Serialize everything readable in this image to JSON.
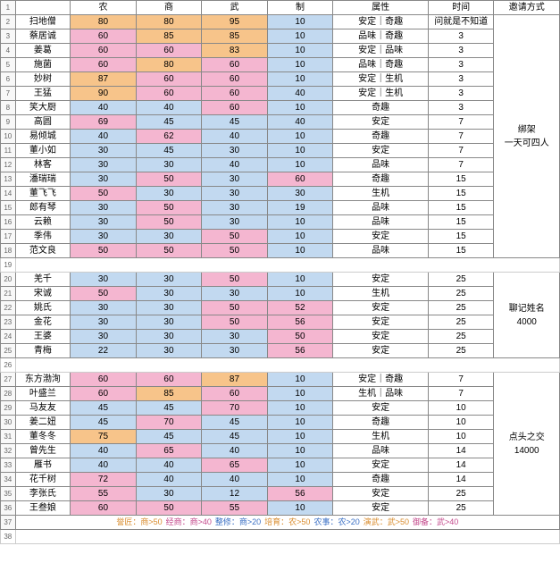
{
  "colors": {
    "orange": "#f7c48a",
    "pink": "#f4b6d0",
    "blue": "#c2d9f0",
    "header": "#ffffff"
  },
  "thresholds": {
    "orange_min": 75,
    "pink_min": 50
  },
  "columns": [
    "农",
    "商",
    "武",
    "制",
    "属性",
    "时间",
    "邀请方式"
  ],
  "sections": [
    {
      "merged_label": "绑架\n一天可四人",
      "rows_start": 2,
      "rows": [
        {
          "name": "扫地僧",
          "stats": [
            80,
            80,
            95,
            10
          ],
          "attr": "安定｜奇趣",
          "time": "问就是不知道"
        },
        {
          "name": "蔡居诚",
          "stats": [
            60,
            85,
            85,
            10
          ],
          "attr": "品味｜奇趣",
          "time": "3"
        },
        {
          "name": "姜葛",
          "stats": [
            60,
            60,
            83,
            10
          ],
          "attr": "安定｜品味",
          "time": "3"
        },
        {
          "name": "施菌",
          "stats": [
            60,
            80,
            60,
            10
          ],
          "attr": "品味｜奇趣",
          "time": "3"
        },
        {
          "name": "妙树",
          "stats": [
            87,
            60,
            60,
            10
          ],
          "attr": "安定｜生机",
          "time": "3"
        },
        {
          "name": "王猛",
          "stats": [
            90,
            60,
            60,
            40
          ],
          "attr": "安定｜生机",
          "time": "3"
        },
        {
          "name": "笑大厨",
          "stats": [
            40,
            40,
            60,
            10
          ],
          "attr": "奇趣",
          "time": "3"
        },
        {
          "name": "高圆",
          "stats": [
            69,
            45,
            45,
            40
          ],
          "attr": "安定",
          "time": "7"
        },
        {
          "name": "易倾城",
          "stats": [
            40,
            62,
            40,
            10
          ],
          "attr": "奇趣",
          "time": "7"
        },
        {
          "name": "董小如",
          "stats": [
            30,
            45,
            30,
            10
          ],
          "attr": "安定",
          "time": "7"
        },
        {
          "name": "林客",
          "stats": [
            30,
            30,
            40,
            10
          ],
          "attr": "品味",
          "time": "7"
        },
        {
          "name": "潘瑞瑞",
          "stats": [
            30,
            50,
            30,
            60
          ],
          "attr": "奇趣",
          "time": "15"
        },
        {
          "name": "董飞飞",
          "stats": [
            50,
            30,
            30,
            30
          ],
          "attr": "生机",
          "time": "15"
        },
        {
          "name": "郎有琴",
          "stats": [
            30,
            50,
            30,
            19
          ],
          "attr": "品味",
          "time": "15"
        },
        {
          "name": "云赖",
          "stats": [
            30,
            50,
            30,
            10
          ],
          "attr": "品味",
          "time": "15"
        },
        {
          "name": "季伟",
          "stats": [
            30,
            30,
            50,
            10
          ],
          "attr": "安定",
          "time": "15"
        },
        {
          "name": "范文良",
          "stats": [
            50,
            50,
            50,
            10
          ],
          "attr": "品味",
          "time": "15"
        }
      ]
    },
    {
      "merged_label": "聊记姓名\n4000",
      "rows_start": 20,
      "rows": [
        {
          "name": "羌千",
          "stats": [
            30,
            30,
            50,
            10
          ],
          "attr": "安定",
          "time": "25"
        },
        {
          "name": "宋诚",
          "stats": [
            50,
            30,
            30,
            10
          ],
          "attr": "生机",
          "time": "25"
        },
        {
          "name": "姚氏",
          "stats": [
            30,
            30,
            50,
            52
          ],
          "attr": "安定",
          "time": "25"
        },
        {
          "name": "金花",
          "stats": [
            30,
            30,
            50,
            56
          ],
          "attr": "安定",
          "time": "25"
        },
        {
          "name": "王婆",
          "stats": [
            30,
            30,
            30,
            50
          ],
          "attr": "安定",
          "time": "25"
        },
        {
          "name": "青梅",
          "stats": [
            22,
            30,
            30,
            56
          ],
          "attr": "安定",
          "time": "25"
        }
      ]
    },
    {
      "merged_label": "点头之交\n14000",
      "rows_start": 27,
      "rows": [
        {
          "name": "东方渤洵",
          "stats": [
            60,
            60,
            87,
            10
          ],
          "attr": "安定｜奇趣",
          "time": "7"
        },
        {
          "name": "叶盛兰",
          "stats": [
            60,
            85,
            60,
            10
          ],
          "attr": "生机｜品味",
          "time": "7"
        },
        {
          "name": "马友友",
          "stats": [
            45,
            45,
            70,
            10
          ],
          "attr": "安定",
          "time": "10"
        },
        {
          "name": "姜二妞",
          "stats": [
            45,
            70,
            45,
            10
          ],
          "attr": "奇趣",
          "time": "10"
        },
        {
          "name": "董冬冬",
          "stats": [
            75,
            45,
            45,
            10
          ],
          "attr": "生机",
          "time": "10"
        },
        {
          "name": "曾先生",
          "stats": [
            40,
            65,
            40,
            10
          ],
          "attr": "品味",
          "time": "14"
        },
        {
          "name": "雁书",
          "stats": [
            40,
            40,
            65,
            10
          ],
          "attr": "安定",
          "time": "14"
        },
        {
          "name": "花千树",
          "stats": [
            72,
            40,
            40,
            10
          ],
          "attr": "奇趣",
          "time": "14"
        },
        {
          "name": "李张氏",
          "stats": [
            55,
            30,
            12,
            56
          ],
          "attr": "安定",
          "time": "25"
        },
        {
          "name": "王叁娘",
          "stats": [
            60,
            50,
            55,
            10
          ],
          "attr": "安定",
          "time": "25"
        }
      ]
    }
  ],
  "legend": [
    {
      "text": "誉匠：商>50",
      "color": "#d98c2e"
    },
    {
      "text": "经商：商>40",
      "color": "#c44a8c"
    },
    {
      "text": "整修：商>20",
      "color": "#3a6fc4"
    },
    {
      "text": "培育：农>50",
      "color": "#d98c2e"
    },
    {
      "text": "农事：农>20",
      "color": "#3a6fc4"
    },
    {
      "text": "演武：武>50",
      "color": "#d98c2e"
    },
    {
      "text": "御备：武>40",
      "color": "#c44a8c"
    }
  ]
}
